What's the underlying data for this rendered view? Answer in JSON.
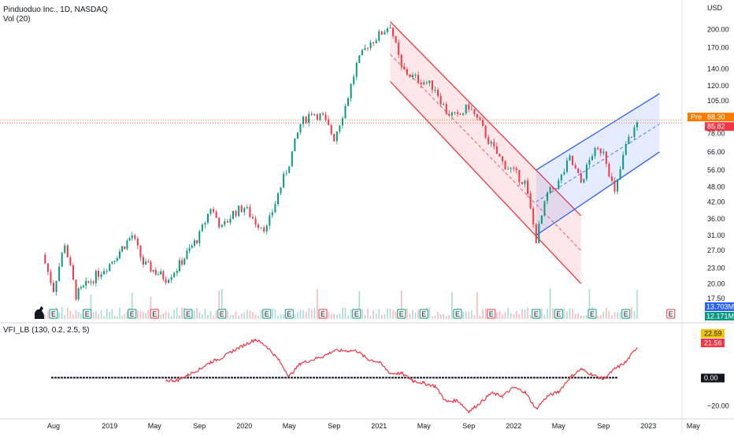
{
  "header": {
    "title": "Pinduoduo Inc., 1D, NASDAQ",
    "volume_label": "Vol (20)",
    "indicator_label": "VFI_LB (130, 0.2, 2.5, 5)"
  },
  "price_axis": {
    "currency": "USD",
    "ticks": [
      "200.00",
      "170.00",
      "140.00",
      "120.00",
      "105.00",
      "78.00",
      "66.00",
      "56.00",
      "48.00",
      "42.00",
      "36.00",
      "31.00",
      "27.00",
      "23.00",
      "20.00",
      "17.50"
    ],
    "tick_values": [
      200,
      170,
      140,
      120,
      105,
      78,
      66,
      56,
      48,
      42,
      36,
      31,
      27,
      23,
      20,
      17.5
    ],
    "badges": [
      {
        "label": "Pre",
        "value": "88.30",
        "price": 88.3,
        "color": "#f57c00"
      },
      {
        "value": "85.82",
        "price": 85.82,
        "color": "#f23645"
      }
    ]
  },
  "volume_badges": [
    {
      "value": "13.703M",
      "color": "#2962ff"
    },
    {
      "value": "12.171M",
      "color": "#089981"
    }
  ],
  "indicator_axis": {
    "ticks": [
      "0.00",
      "−20.00"
    ],
    "tick_values": [
      0,
      -20
    ],
    "badges": [
      {
        "value": "22.59",
        "color": "#f5c400",
        "text_color": "#131722"
      },
      {
        "value": "21.56",
        "color": "#f23645",
        "text_color": "#ffffff"
      },
      {
        "value": "0.00",
        "color": "#131722",
        "text_color": "#ffffff"
      }
    ]
  },
  "time_axis": {
    "labels": [
      "Aug",
      "2019",
      "May",
      "Sep",
      "2020",
      "May",
      "Sep",
      "2021",
      "May",
      "Sep",
      "2022",
      "May",
      "Sep",
      "2023",
      "May"
    ]
  },
  "earnings_marker": "E",
  "colors": {
    "up": "#089981",
    "down": "#f23645",
    "channel_down": "#f23645",
    "channel_up": "#2962ff",
    "vfi": "#f23645",
    "zero_line": "#131722"
  },
  "chart_data": {
    "type": "candlestick",
    "title": "Pinduoduo Inc., 1D, NASDAQ",
    "scale": "log",
    "ylim": [
      15.5,
      230
    ],
    "x_start": "2018-07",
    "x_end": "2023-06",
    "price_path": [
      {
        "x": "2018-07",
        "y": 26
      },
      {
        "x": "2018-08",
        "y": 19
      },
      {
        "x": "2018-09",
        "y": 29
      },
      {
        "x": "2018-10",
        "y": 18
      },
      {
        "x": "2018-12",
        "y": 22
      },
      {
        "x": "2019-01",
        "y": 24
      },
      {
        "x": "2019-03",
        "y": 31
      },
      {
        "x": "2019-04",
        "y": 24
      },
      {
        "x": "2019-06",
        "y": 21
      },
      {
        "x": "2019-07",
        "y": 23
      },
      {
        "x": "2019-09",
        "y": 31
      },
      {
        "x": "2019-10",
        "y": 40
      },
      {
        "x": "2019-11",
        "y": 33
      },
      {
        "x": "2019-12",
        "y": 38
      },
      {
        "x": "2020-01",
        "y": 40
      },
      {
        "x": "2020-02",
        "y": 35
      },
      {
        "x": "2020-03",
        "y": 33
      },
      {
        "x": "2020-04",
        "y": 45
      },
      {
        "x": "2020-05",
        "y": 60
      },
      {
        "x": "2020-06",
        "y": 85
      },
      {
        "x": "2020-07",
        "y": 95
      },
      {
        "x": "2020-08",
        "y": 90
      },
      {
        "x": "2020-09",
        "y": 75
      },
      {
        "x": "2020-10",
        "y": 100
      },
      {
        "x": "2020-11",
        "y": 145
      },
      {
        "x": "2020-12",
        "y": 175
      },
      {
        "x": "2021-01",
        "y": 190
      },
      {
        "x": "2021-02",
        "y": 210
      },
      {
        "x": "2021-03",
        "y": 140
      },
      {
        "x": "2021-04",
        "y": 130
      },
      {
        "x": "2021-05",
        "y": 125
      },
      {
        "x": "2021-06",
        "y": 118
      },
      {
        "x": "2021-07",
        "y": 95
      },
      {
        "x": "2021-08",
        "y": 90
      },
      {
        "x": "2021-09",
        "y": 100
      },
      {
        "x": "2021-10",
        "y": 85
      },
      {
        "x": "2021-11",
        "y": 70
      },
      {
        "x": "2021-12",
        "y": 60
      },
      {
        "x": "2022-01",
        "y": 55
      },
      {
        "x": "2022-02",
        "y": 50
      },
      {
        "x": "2022-03",
        "y": 30
      },
      {
        "x": "2022-04",
        "y": 45
      },
      {
        "x": "2022-05",
        "y": 50
      },
      {
        "x": "2022-06",
        "y": 62
      },
      {
        "x": "2022-07",
        "y": 50
      },
      {
        "x": "2022-08",
        "y": 65
      },
      {
        "x": "2022-09",
        "y": 68
      },
      {
        "x": "2022-10",
        "y": 45
      },
      {
        "x": "2022-11",
        "y": 70
      },
      {
        "x": "2022-12",
        "y": 85.82
      }
    ],
    "channels": [
      {
        "name": "",
        "color": "#f23645",
        "upper": [
          {
            "x": "2021-02",
            "y": 215
          },
          {
            "x": "2022-07",
            "y": 37
          }
        ],
        "lower": [
          {
            "x": "2021-02",
            "y": 125
          },
          {
            "x": "2022-07",
            "y": 20
          }
        ],
        "mid": [
          {
            "x": "2021-02",
            "y": 160
          },
          {
            "x": "2022-07",
            "y": 27
          }
        ]
      },
      {
        "name": "",
        "color": "#2962ff",
        "upper": [
          {
            "x": "2022-03",
            "y": 56
          },
          {
            "x": "2023-02",
            "y": 112
          }
        ],
        "lower": [
          {
            "x": "2022-03",
            "y": 31
          },
          {
            "x": "2023-02",
            "y": 66
          }
        ],
        "mid": [
          {
            "x": "2022-03",
            "y": 42
          },
          {
            "x": "2023-02",
            "y": 85
          }
        ]
      }
    ],
    "indicator": {
      "name": "VFI_LB",
      "values": [
        {
          "x": "2019-06",
          "y": -2
        },
        {
          "x": "2019-07",
          "y": -2
        },
        {
          "x": "2019-08",
          "y": 2
        },
        {
          "x": "2019-09",
          "y": 6
        },
        {
          "x": "2019-10",
          "y": 11
        },
        {
          "x": "2019-11",
          "y": 14
        },
        {
          "x": "2019-12",
          "y": 19
        },
        {
          "x": "2020-02",
          "y": 27
        },
        {
          "x": "2020-03",
          "y": 22
        },
        {
          "x": "2020-04",
          "y": 13
        },
        {
          "x": "2020-05",
          "y": 1
        },
        {
          "x": "2020-06",
          "y": 10
        },
        {
          "x": "2020-08",
          "y": 15
        },
        {
          "x": "2020-09",
          "y": 19
        },
        {
          "x": "2020-11",
          "y": 19
        },
        {
          "x": "2020-12",
          "y": 13
        },
        {
          "x": "2021-01",
          "y": 11
        },
        {
          "x": "2021-02",
          "y": 3
        },
        {
          "x": "2021-03",
          "y": 3
        },
        {
          "x": "2021-04",
          "y": -2
        },
        {
          "x": "2021-05",
          "y": -4
        },
        {
          "x": "2021-06",
          "y": -6
        },
        {
          "x": "2021-07",
          "y": -17
        },
        {
          "x": "2021-08",
          "y": -16
        },
        {
          "x": "2021-09",
          "y": -24
        },
        {
          "x": "2021-10",
          "y": -18
        },
        {
          "x": "2021-11",
          "y": -11
        },
        {
          "x": "2021-12",
          "y": -13
        },
        {
          "x": "2022-01",
          "y": -7
        },
        {
          "x": "2022-02",
          "y": -10
        },
        {
          "x": "2022-03",
          "y": -22
        },
        {
          "x": "2022-04",
          "y": -13
        },
        {
          "x": "2022-05",
          "y": -10
        },
        {
          "x": "2022-06",
          "y": 0
        },
        {
          "x": "2022-07",
          "y": 6
        },
        {
          "x": "2022-08",
          "y": 2
        },
        {
          "x": "2022-09",
          "y": -1
        },
        {
          "x": "2022-10",
          "y": 6
        },
        {
          "x": "2022-11",
          "y": 11
        },
        {
          "x": "2022-12",
          "y": 21.56
        }
      ]
    }
  }
}
